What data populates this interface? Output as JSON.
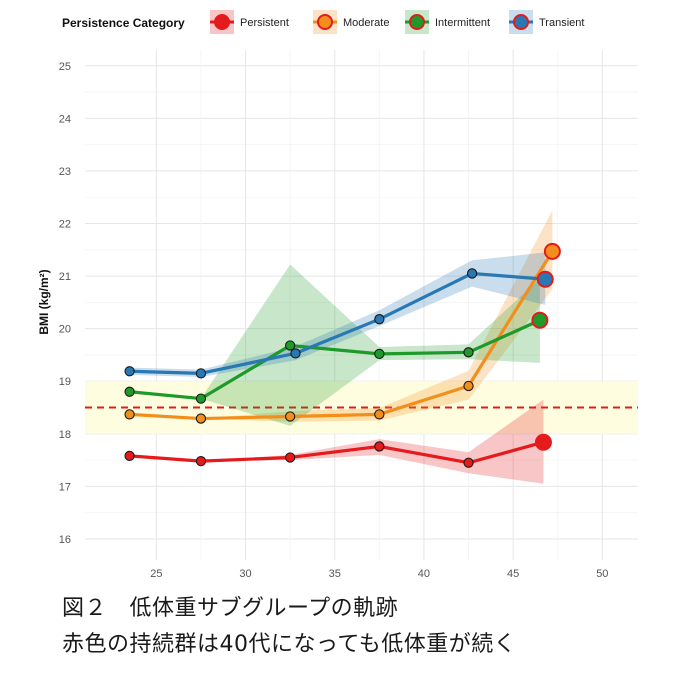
{
  "legend_title": "Persistence Category",
  "caption": {
    "line1": "図２　低体重サブグループの軌跡",
    "line2": "赤色の持続群は40代になっても低体重が続く"
  },
  "chart_data": {
    "type": "line",
    "title": "",
    "xlabel": "",
    "ylabel": "BMI (kg/m²)",
    "xlim": [
      21,
      52
    ],
    "ylim": [
      15.6,
      25.3
    ],
    "x_ticks": [
      25,
      30,
      35,
      40,
      45,
      50
    ],
    "y_ticks": [
      16,
      17,
      18,
      19,
      20,
      21,
      22,
      23,
      24,
      25
    ],
    "grid": true,
    "legend_position": "top",
    "reference": {
      "threshold_line": 18.5,
      "threshold_color": "#e41a1c",
      "band": [
        18.0,
        19.0
      ],
      "band_color": "#fffde0"
    },
    "series": [
      {
        "name": "Persistent",
        "color": "#e41a1c",
        "x": [
          23.5,
          27.5,
          32.5,
          37.5,
          42.5,
          46.7
        ],
        "values": [
          17.58,
          17.48,
          17.55,
          17.76,
          17.45,
          17.84
        ],
        "ci_low": [
          17.58,
          17.48,
          17.5,
          17.6,
          17.25,
          17.05
        ],
        "ci_high": [
          17.58,
          17.48,
          17.6,
          17.9,
          17.65,
          18.65
        ]
      },
      {
        "name": "Moderate",
        "color": "#f28e1c",
        "x": [
          23.5,
          27.5,
          32.5,
          37.5,
          42.5,
          47.2
        ],
        "values": [
          18.37,
          18.29,
          18.33,
          18.37,
          18.91,
          21.47
        ],
        "ci_low": [
          18.37,
          18.29,
          18.23,
          18.25,
          18.65,
          20.75
        ],
        "ci_high": [
          18.37,
          18.29,
          18.43,
          18.49,
          19.2,
          22.25
        ]
      },
      {
        "name": "Intermittent",
        "color": "#1e9a2a",
        "x": [
          23.5,
          27.5,
          32.5,
          37.5,
          42.5,
          46.5
        ],
        "values": [
          18.8,
          18.67,
          19.68,
          19.52,
          19.55,
          20.16
        ],
        "ci_low": [
          18.8,
          18.67,
          18.15,
          19.4,
          19.42,
          19.35
        ],
        "ci_high": [
          18.8,
          18.67,
          21.22,
          19.65,
          19.7,
          20.95
        ]
      },
      {
        "name": "Transient",
        "color": "#2878b4",
        "x": [
          23.5,
          27.5,
          32.8,
          37.5,
          42.7,
          46.8
        ],
        "values": [
          19.19,
          19.15,
          19.53,
          20.18,
          21.05,
          20.94
        ],
        "ci_low": [
          19.12,
          19.08,
          19.4,
          20.05,
          20.8,
          20.45
        ],
        "ci_high": [
          19.26,
          19.22,
          19.66,
          20.35,
          21.3,
          21.45
        ]
      }
    ]
  }
}
